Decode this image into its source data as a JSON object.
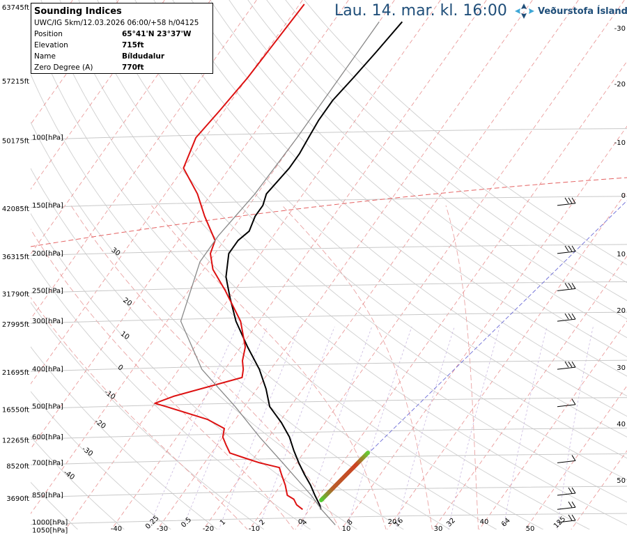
{
  "header": {
    "title": "Lau. 14. mar. kl. 16:00",
    "brand": "Veðurstofa Íslands",
    "brand_icon": "vedurstofa-logo-icon",
    "brand_color": "#1f4e79"
  },
  "info": {
    "title": "Sounding Indices",
    "subtitle": "UWC/IG 5km/12.03.2026 06:00/+58 h/04125",
    "rows": [
      {
        "key": "Position",
        "value": "65°41'N 23°37'W"
      },
      {
        "key": "Elevation",
        "value": "715ft"
      },
      {
        "key": "Name",
        "value": "Bíldudalur"
      },
      {
        "key": "Zero Degree (A)",
        "value": "770ft"
      }
    ]
  },
  "chart_data": {
    "type": "line",
    "chart_kind": "skew-T log-p sounding diagram",
    "pressure_levels_hpa": [
      1050,
      1000,
      850,
      700,
      600,
      500,
      400,
      300,
      250,
      200,
      150,
      100
    ],
    "pressure_labels": [
      "1050[hPa]",
      "1000[hPa]",
      "850[hPa]",
      "700[hPa]",
      "600[hPa]",
      "500[hPa]",
      "400[hPa]",
      "300[hPa]",
      "250[hPa]",
      "200[hPa]",
      "150[hPa]",
      "100[hPa]"
    ],
    "height_labels": [
      {
        "p": 850,
        "label": "3690ft"
      },
      {
        "p": 700,
        "label": "8520ft"
      },
      {
        "p": 600,
        "label": "12265ft"
      },
      {
        "p": 500,
        "label": "16550ft"
      },
      {
        "p": 400,
        "label": "21695ft"
      },
      {
        "p": 300,
        "label": "27995ft"
      },
      {
        "p": 250,
        "label": "31790ft"
      },
      {
        "p": 200,
        "label": "36315ft"
      },
      {
        "p": 150,
        "label": "42085ft"
      },
      {
        "p": 100,
        "label": "50175ft"
      },
      {
        "p": 70,
        "label": "57215ft"
      },
      {
        "p": 45,
        "label": "63745ft"
      }
    ],
    "temperature_ticks_c": [
      -40,
      -30,
      -20,
      -10,
      0,
      10,
      20,
      30,
      40,
      50
    ],
    "ylim_hpa": [
      1050,
      45
    ],
    "series": [
      {
        "name": "",
        "role": "temperature",
        "color": "#000000",
        "points": [
          [
            925,
            2.5
          ],
          [
            900,
            1.5
          ],
          [
            850,
            -1.0
          ],
          [
            800,
            -3.5
          ],
          [
            750,
            -6.5
          ],
          [
            700,
            -9.5
          ],
          [
            650,
            -12.5
          ],
          [
            600,
            -15.5
          ],
          [
            550,
            -19.5
          ],
          [
            500,
            -24.5
          ],
          [
            450,
            -28.0
          ],
          [
            400,
            -32.5
          ],
          [
            350,
            -38.5
          ],
          [
            300,
            -45.0
          ],
          [
            260,
            -50.0
          ],
          [
            230,
            -54.0
          ],
          [
            200,
            -57.0
          ],
          [
            185,
            -57.0
          ],
          [
            175,
            -56.0
          ],
          [
            160,
            -57.0
          ],
          [
            150,
            -57.0
          ],
          [
            140,
            -58.0
          ],
          [
            120,
            -57.0
          ],
          [
            110,
            -57.0
          ],
          [
            100,
            -57.5
          ],
          [
            90,
            -58.0
          ],
          [
            80,
            -58.0
          ],
          [
            70,
            -57.0
          ],
          [
            60,
            -56.0
          ],
          [
            50,
            -55.0
          ]
        ]
      },
      {
        "name": "",
        "role": "dewpoint",
        "color": "#dd1111",
        "points": [
          [
            925,
            -1.5
          ],
          [
            900,
            -3.5
          ],
          [
            870,
            -5.0
          ],
          [
            850,
            -7.0
          ],
          [
            800,
            -9.0
          ],
          [
            750,
            -11.5
          ],
          [
            720,
            -13.0
          ],
          [
            700,
            -18.0
          ],
          [
            680,
            -22.0
          ],
          [
            660,
            -26.0
          ],
          [
            630,
            -28.0
          ],
          [
            600,
            -30.0
          ],
          [
            570,
            -31.0
          ],
          [
            540,
            -36.0
          ],
          [
            500,
            -47.0
          ],
          [
            490,
            -50.0
          ],
          [
            470,
            -47.0
          ],
          [
            420,
            -35.0
          ],
          [
            400,
            -36.0
          ],
          [
            380,
            -37.5
          ],
          [
            350,
            -39.0
          ],
          [
            300,
            -44.0
          ],
          [
            250,
            -52.0
          ],
          [
            220,
            -58.0
          ],
          [
            200,
            -61.0
          ],
          [
            185,
            -62.0
          ],
          [
            160,
            -68.0
          ],
          [
            140,
            -73.0
          ],
          [
            120,
            -80.0
          ],
          [
            100,
            -82.0
          ],
          [
            85,
            -81.0
          ],
          [
            70,
            -80.0
          ],
          [
            45,
            -79.0
          ]
        ]
      },
      {
        "name": "",
        "role": "parcel",
        "color": "#888888",
        "points": [
          [
            1015,
            8.0
          ],
          [
            925,
            2.6
          ],
          [
            850,
            -1.8
          ],
          [
            700,
            -13.0
          ],
          [
            600,
            -22.0
          ],
          [
            500,
            -32.0
          ],
          [
            400,
            -45.0
          ],
          [
            300,
            -57.0
          ],
          [
            210,
            -62.0
          ],
          [
            180,
            -62.0
          ],
          [
            140,
            -60.5
          ],
          [
            100,
            -60.0
          ],
          [
            70,
            -60.0
          ],
          [
            50,
            -60.0
          ]
        ]
      }
    ],
    "isotherm_dash_color": "#e06a6a",
    "mixing_ratio_labels": [
      "0.25",
      "0.5",
      "1",
      "2",
      "4",
      "8",
      "16",
      "32",
      "64",
      "125"
    ],
    "dry_adiabat_labels": [
      {
        "t": -40,
        "label": "-40"
      },
      {
        "t": -30,
        "label": "-30"
      },
      {
        "t": -20,
        "label": "-20"
      },
      {
        "t": -10,
        "label": "-10"
      },
      {
        "t": 0,
        "label": "0"
      },
      {
        "t": 10,
        "label": "10"
      },
      {
        "t": 20,
        "label": "20"
      },
      {
        "t": 30,
        "label": "30"
      }
    ],
    "right_axis_labels": [
      "-30",
      "-20",
      "-10",
      "0",
      "10",
      "20",
      "30",
      "40",
      "50"
    ],
    "wind_barbs": [
      "barb-1000",
      "barb-925",
      "barb-850",
      "barb-700",
      "barb-500",
      "barb-400",
      "barb-300",
      "barb-250",
      "barb-200",
      "barb-150"
    ],
    "grid": true
  }
}
